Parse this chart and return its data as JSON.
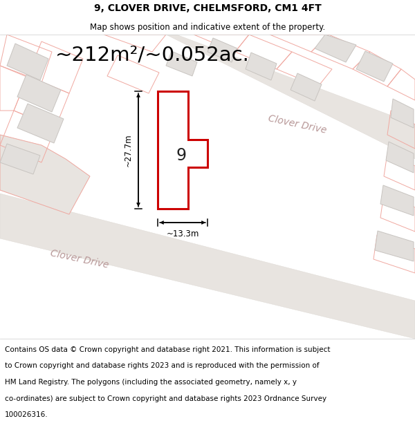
{
  "title": "9, CLOVER DRIVE, CHELMSFORD, CM1 4FT",
  "subtitle": "Map shows position and indicative extent of the property.",
  "area_text": "~212m²/~0.052ac.",
  "dim_width": "~13.3m",
  "dim_height": "~27.7m",
  "plot_label": "9",
  "road_label1": "Clover Drive",
  "road_label2": "Clover Drive",
  "footer_lines": [
    "Contains OS data © Crown copyright and database right 2021. This information is subject",
    "to Crown copyright and database rights 2023 and is reproduced with the permission of",
    "HM Land Registry. The polygons (including the associated geometry, namely x, y",
    "co-ordinates) are subject to Crown copyright and database rights 2023 Ordnance Survey",
    "100026316."
  ],
  "map_bg": "#f7f5f3",
  "plot_fill": "#ffffff",
  "plot_edge": "#cc0000",
  "building_fill": "#e2dfdc",
  "building_edge": "#c8c4c0",
  "prop_line_color": "#f0a8a0",
  "road_fill": "#e8e4e0",
  "road_edge": "#ddd8d2",
  "title_fontsize": 10,
  "subtitle_fontsize": 8.5,
  "area_fontsize": 21,
  "dim_fontsize": 8.5,
  "plot_label_fontsize": 17,
  "road_label_fontsize": 10,
  "footer_fontsize": 7.5
}
